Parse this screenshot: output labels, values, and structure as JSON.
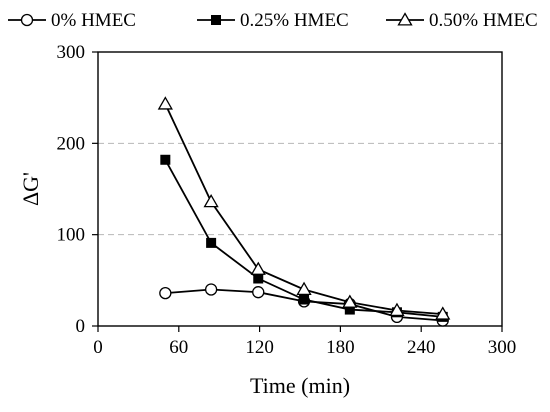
{
  "chart_data": {
    "type": "line",
    "xlabel": "Time (min)",
    "ylabel": "ΔG'",
    "xlim": [
      0,
      300
    ],
    "ylim": [
      0,
      300
    ],
    "xticks": [
      0,
      60,
      120,
      180,
      240,
      300
    ],
    "yticks": [
      0,
      100,
      200,
      300
    ],
    "grid": "horizontal dashed at 100 and 200",
    "legend_position": "top",
    "series": [
      {
        "name": "0% HMEC",
        "marker": "open-circle",
        "x": [
          50,
          84,
          119,
          153,
          187,
          222,
          256
        ],
        "y": [
          36,
          40,
          37,
          27,
          24,
          10,
          6
        ]
      },
      {
        "name": "0.25% HMEC",
        "marker": "filled-square",
        "x": [
          50,
          84,
          119,
          153,
          187,
          222,
          256
        ],
        "y": [
          182,
          91,
          52,
          29,
          18,
          15,
          10
        ]
      },
      {
        "name": "0.50% HMEC",
        "marker": "open-triangle",
        "x": [
          50,
          84,
          119,
          153,
          187,
          222,
          256
        ],
        "y": [
          243,
          136,
          62,
          40,
          26,
          17,
          13
        ]
      }
    ]
  }
}
